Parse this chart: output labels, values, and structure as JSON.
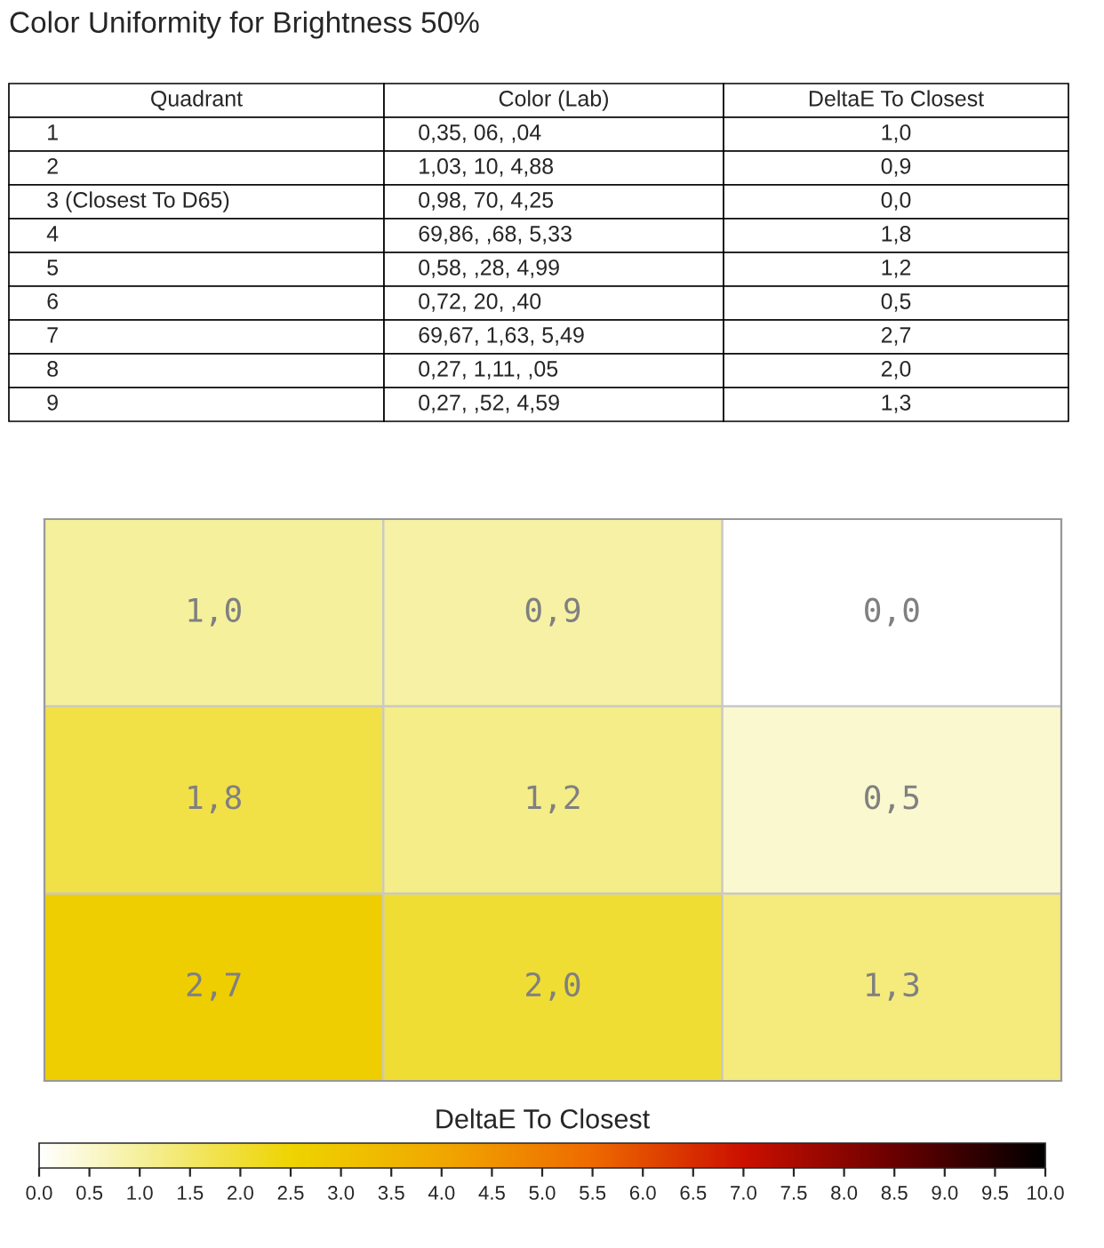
{
  "chart_data": [
    {
      "type": "other",
      "title": "Color Uniformity for Brightness 50%",
      "categories": [
        "Quadrant",
        "Color (Lab)",
        "DeltaE To Closest"
      ],
      "annotations": [
        "1",
        "0,35, 06, ,04",
        "1,0",
        "2",
        "1,03, 10, 4,88",
        "0,9",
        "3 (Closest To D65)",
        "0,98, 70, 4,25",
        "0,0",
        "4",
        "69,86, ,68, 5,33",
        "1,8",
        "5",
        "0,58, ,28, 4,99",
        "1,2",
        "6",
        "0,72, 20, ,40",
        "0,5",
        "7",
        "69,67, 1,63, 5,49",
        "2,7",
        "8",
        "0,27, 1,11, ,05",
        "2,0",
        "9",
        "0,27, ,52, 4,59",
        "1,3"
      ]
    },
    {
      "type": "heatmap",
      "categories": [
        null,
        null,
        null
      ],
      "y_categories": [
        null,
        null,
        null
      ],
      "cells": [
        [
          1.0,
          0.9,
          0.0
        ],
        [
          1.8,
          1.2,
          0.5
        ],
        [
          2.7,
          2.0,
          1.3
        ]
      ],
      "cell_labels": [
        [
          "1,0",
          "0,9",
          "0,0"
        ],
        [
          "1,8",
          "1,2",
          "0,5"
        ],
        [
          "2,7",
          "2,0",
          "1,3"
        ]
      ],
      "clabel": "DeltaE To Closest",
      "clim": [
        0,
        10
      ],
      "cticks": [
        {
          "value": 0,
          "label": "0.0"
        },
        {
          "value": 0.5,
          "label": "0.5"
        },
        {
          "value": 1,
          "label": "1.0"
        },
        {
          "value": 1.5,
          "label": "1.5"
        },
        {
          "value": 2,
          "label": "2.0"
        },
        {
          "value": 2.5,
          "label": "2.5"
        },
        {
          "value": 3,
          "label": "3.0"
        },
        {
          "value": 3.5,
          "label": "3.5"
        },
        {
          "value": 4,
          "label": "4.0"
        },
        {
          "value": 4.5,
          "label": "4.5"
        },
        {
          "value": 5,
          "label": "5.0"
        },
        {
          "value": 5.5,
          "label": "5.5"
        },
        {
          "value": 6,
          "label": "6.0"
        },
        {
          "value": 6.5,
          "label": "6.5"
        },
        {
          "value": 7,
          "label": "7.0"
        },
        {
          "value": 7.5,
          "label": "7.5"
        },
        {
          "value": 8,
          "label": "8.0"
        },
        {
          "value": 8.5,
          "label": "8.5"
        },
        {
          "value": 9,
          "label": "9.0"
        },
        {
          "value": 9.5,
          "label": "9.5"
        },
        {
          "value": 10,
          "label": "10.0"
        }
      ],
      "legend": false
    }
  ]
}
